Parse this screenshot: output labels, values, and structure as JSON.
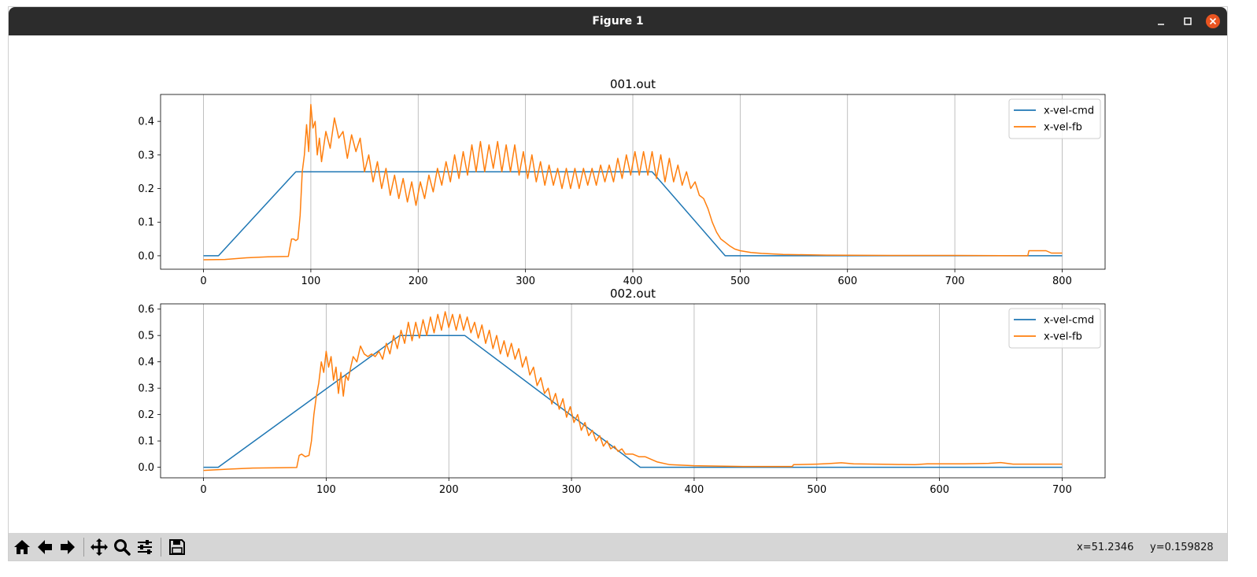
{
  "window": {
    "title": "Figure 1"
  },
  "status": {
    "x_readout": "x=51.2346",
    "y_readout": "y=0.159828"
  },
  "toolbar": {
    "buttons": [
      "home-icon",
      "back-icon",
      "forward-icon",
      "pan-icon",
      "zoom-icon",
      "configure-subplots-icon",
      "save-icon"
    ]
  },
  "colors": {
    "cmd": "#1f77b4",
    "fb": "#ff7f0e",
    "grid": "#b0b0b0",
    "titlebar": "#2c2c2c",
    "close": "#e95420"
  },
  "chart_data": [
    {
      "type": "line",
      "title": "001.out",
      "xlabel": "",
      "ylabel": "",
      "xlim": [
        -40,
        840
      ],
      "ylim": [
        -0.04,
        0.48
      ],
      "xticks": [
        0,
        100,
        200,
        300,
        400,
        500,
        600,
        700,
        800
      ],
      "yticks": [
        0.0,
        0.1,
        0.2,
        0.3,
        0.4
      ],
      "ytick_labels": [
        "0.0",
        "0.1",
        "0.2",
        "0.3",
        "0.4"
      ],
      "grid": "vertical",
      "legend": "top-right",
      "series": [
        {
          "name": "x-vel-cmd",
          "x": [
            0,
            14,
            86,
            418,
            486,
            800
          ],
          "y": [
            0.0,
            0.0,
            0.25,
            0.25,
            0.0,
            0.0
          ]
        },
        {
          "name": "x-vel-fb",
          "x": [
            0,
            20,
            40,
            60,
            79,
            80,
            82,
            84,
            86,
            88,
            90,
            92,
            94,
            96,
            98,
            100,
            102,
            104,
            106,
            108,
            110,
            114,
            118,
            122,
            126,
            130,
            134,
            138,
            142,
            146,
            150,
            154,
            158,
            162,
            166,
            170,
            174,
            178,
            182,
            186,
            190,
            194,
            198,
            202,
            206,
            210,
            214,
            218,
            222,
            226,
            230,
            234,
            238,
            242,
            246,
            250,
            254,
            258,
            262,
            266,
            270,
            274,
            278,
            282,
            286,
            290,
            294,
            298,
            302,
            306,
            310,
            314,
            318,
            322,
            326,
            330,
            334,
            338,
            342,
            346,
            350,
            354,
            358,
            362,
            366,
            370,
            374,
            378,
            382,
            386,
            390,
            394,
            398,
            402,
            406,
            410,
            414,
            418,
            422,
            426,
            430,
            434,
            438,
            442,
            446,
            450,
            454,
            458,
            462,
            466,
            470,
            474,
            478,
            482,
            486,
            490,
            495,
            500,
            510,
            520,
            540,
            580,
            640,
            700,
            768,
            769,
            785,
            790,
            800
          ],
          "y": [
            -0.012,
            -0.011,
            -0.006,
            -0.003,
            -0.002,
            0.015,
            0.05,
            0.05,
            0.045,
            0.05,
            0.12,
            0.25,
            0.3,
            0.39,
            0.31,
            0.45,
            0.38,
            0.4,
            0.3,
            0.35,
            0.28,
            0.37,
            0.32,
            0.41,
            0.35,
            0.37,
            0.29,
            0.36,
            0.31,
            0.35,
            0.25,
            0.3,
            0.22,
            0.28,
            0.2,
            0.26,
            0.18,
            0.24,
            0.17,
            0.23,
            0.16,
            0.22,
            0.15,
            0.22,
            0.17,
            0.24,
            0.19,
            0.26,
            0.21,
            0.28,
            0.22,
            0.3,
            0.23,
            0.31,
            0.24,
            0.33,
            0.25,
            0.34,
            0.25,
            0.33,
            0.26,
            0.34,
            0.25,
            0.33,
            0.25,
            0.33,
            0.24,
            0.31,
            0.23,
            0.3,
            0.22,
            0.28,
            0.21,
            0.27,
            0.21,
            0.26,
            0.2,
            0.26,
            0.2,
            0.26,
            0.2,
            0.26,
            0.21,
            0.26,
            0.21,
            0.27,
            0.22,
            0.27,
            0.22,
            0.29,
            0.23,
            0.3,
            0.24,
            0.31,
            0.24,
            0.31,
            0.24,
            0.31,
            0.23,
            0.3,
            0.22,
            0.29,
            0.22,
            0.27,
            0.21,
            0.25,
            0.2,
            0.22,
            0.18,
            0.17,
            0.14,
            0.1,
            0.07,
            0.05,
            0.04,
            0.03,
            0.02,
            0.015,
            0.01,
            0.007,
            0.004,
            0.002,
            0.001,
            0.001,
            0.0,
            0.015,
            0.015,
            0.008,
            0.008
          ]
        }
      ]
    },
    {
      "type": "line",
      "title": "002.out",
      "xlabel": "",
      "ylabel": "",
      "xlim": [
        -35,
        735
      ],
      "ylim": [
        -0.04,
        0.62
      ],
      "xticks": [
        0,
        100,
        200,
        300,
        400,
        500,
        600,
        700
      ],
      "yticks": [
        0.0,
        0.1,
        0.2,
        0.3,
        0.4,
        0.5,
        0.6
      ],
      "ytick_labels": [
        "0.0",
        "0.1",
        "0.2",
        "0.3",
        "0.4",
        "0.5",
        "0.6"
      ],
      "grid": "vertical",
      "legend": "top-right",
      "series": [
        {
          "name": "x-vel-cmd",
          "x": [
            0,
            12,
            160,
            213,
            356,
            700
          ],
          "y": [
            0.0,
            0.0,
            0.5,
            0.5,
            0.0,
            0.0
          ]
        },
        {
          "name": "x-vel-fb",
          "x": [
            0,
            20,
            40,
            60,
            76,
            78,
            80,
            83,
            86,
            88,
            90,
            92,
            94,
            96,
            98,
            100,
            102,
            104,
            106,
            108,
            110,
            112,
            114,
            116,
            118,
            120,
            122,
            125,
            128,
            131,
            134,
            137,
            140,
            143,
            146,
            149,
            152,
            155,
            158,
            161,
            164,
            167,
            170,
            173,
            176,
            179,
            182,
            185,
            188,
            191,
            194,
            197,
            200,
            203,
            206,
            209,
            212,
            215,
            218,
            221,
            224,
            227,
            230,
            233,
            236,
            239,
            242,
            245,
            248,
            251,
            254,
            257,
            260,
            263,
            266,
            269,
            272,
            275,
            278,
            281,
            284,
            287,
            290,
            293,
            296,
            299,
            302,
            305,
            308,
            311,
            314,
            317,
            320,
            323,
            326,
            329,
            332,
            335,
            338,
            341,
            344,
            347,
            350,
            355,
            360,
            370,
            380,
            400,
            440,
            480,
            481,
            500,
            510,
            520,
            530,
            560,
            580,
            590,
            620,
            640,
            650,
            660,
            700
          ],
          "y": [
            -0.012,
            -0.007,
            -0.003,
            -0.002,
            -0.001,
            0.045,
            0.05,
            0.04,
            0.045,
            0.1,
            0.2,
            0.27,
            0.32,
            0.4,
            0.36,
            0.44,
            0.38,
            0.42,
            0.33,
            0.38,
            0.28,
            0.36,
            0.27,
            0.35,
            0.33,
            0.38,
            0.42,
            0.4,
            0.46,
            0.43,
            0.42,
            0.43,
            0.42,
            0.44,
            0.41,
            0.47,
            0.43,
            0.5,
            0.45,
            0.52,
            0.47,
            0.55,
            0.48,
            0.55,
            0.49,
            0.56,
            0.5,
            0.57,
            0.51,
            0.58,
            0.52,
            0.59,
            0.53,
            0.58,
            0.52,
            0.58,
            0.52,
            0.57,
            0.51,
            0.55,
            0.49,
            0.54,
            0.47,
            0.52,
            0.45,
            0.5,
            0.43,
            0.48,
            0.42,
            0.47,
            0.41,
            0.45,
            0.38,
            0.42,
            0.35,
            0.38,
            0.31,
            0.34,
            0.28,
            0.3,
            0.24,
            0.28,
            0.22,
            0.26,
            0.19,
            0.23,
            0.17,
            0.2,
            0.14,
            0.17,
            0.12,
            0.14,
            0.1,
            0.12,
            0.08,
            0.1,
            0.07,
            0.08,
            0.06,
            0.07,
            0.05,
            0.05,
            0.05,
            0.04,
            0.04,
            0.02,
            0.01,
            0.006,
            0.003,
            0.003,
            0.01,
            0.012,
            0.014,
            0.017,
            0.013,
            0.011,
            0.01,
            0.013,
            0.013,
            0.015,
            0.018,
            0.012,
            0.012
          ]
        }
      ]
    }
  ]
}
